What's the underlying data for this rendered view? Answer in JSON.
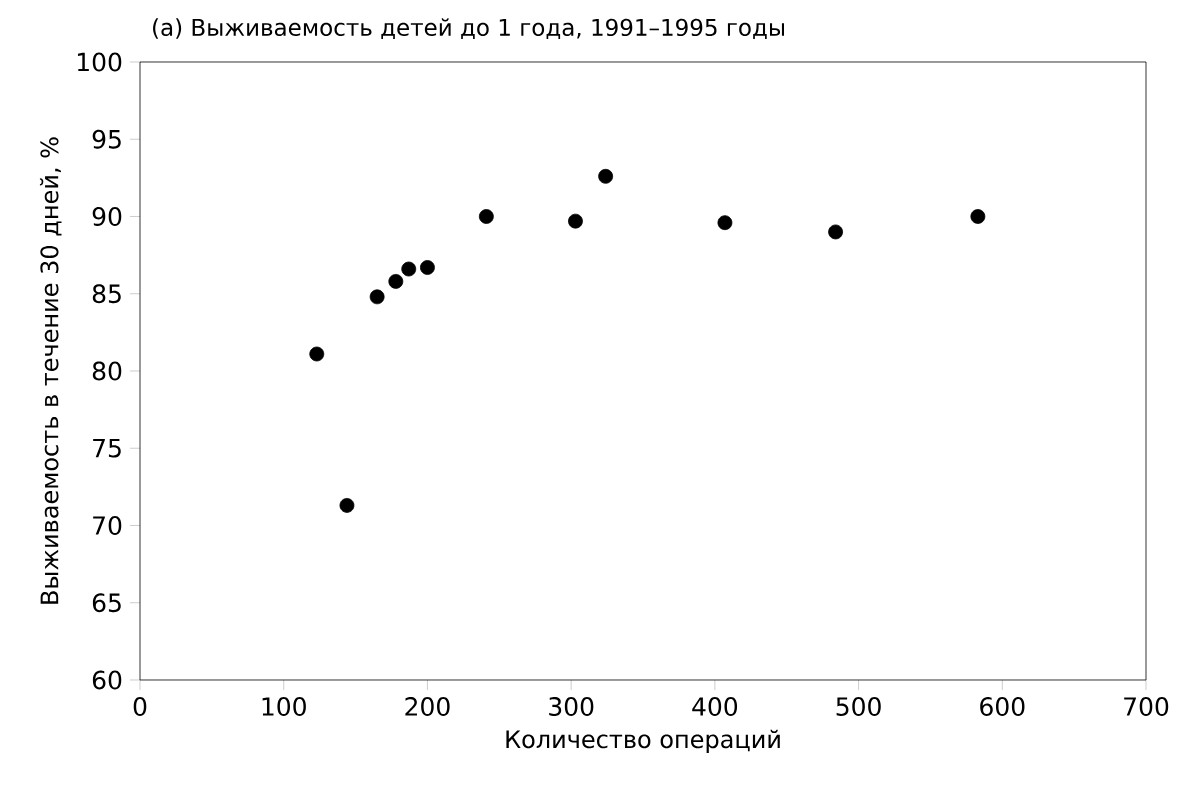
{
  "chart_data": {
    "type": "scatter",
    "title": "(а) Выживаемость детей до 1 года, 1991–1995 годы",
    "xlabel": "Количество операций",
    "ylabel": "Выживаемость в течение 30 дней, %",
    "x": [
      123,
      144,
      165,
      178,
      187,
      200,
      241,
      303,
      324,
      407,
      484,
      583
    ],
    "values": [
      81.1,
      71.3,
      84.8,
      85.8,
      86.6,
      86.7,
      90.0,
      89.7,
      92.6,
      89.6,
      89.0,
      90.0
    ],
    "color": "#000000",
    "marker": "circle",
    "grid": false,
    "xlim": [
      0,
      700
    ],
    "ylim": [
      60,
      100
    ],
    "xticks": [
      0,
      100,
      200,
      300,
      400,
      500,
      600,
      700
    ],
    "yticks": [
      60,
      65,
      70,
      75,
      80,
      85,
      90,
      95,
      100
    ]
  }
}
